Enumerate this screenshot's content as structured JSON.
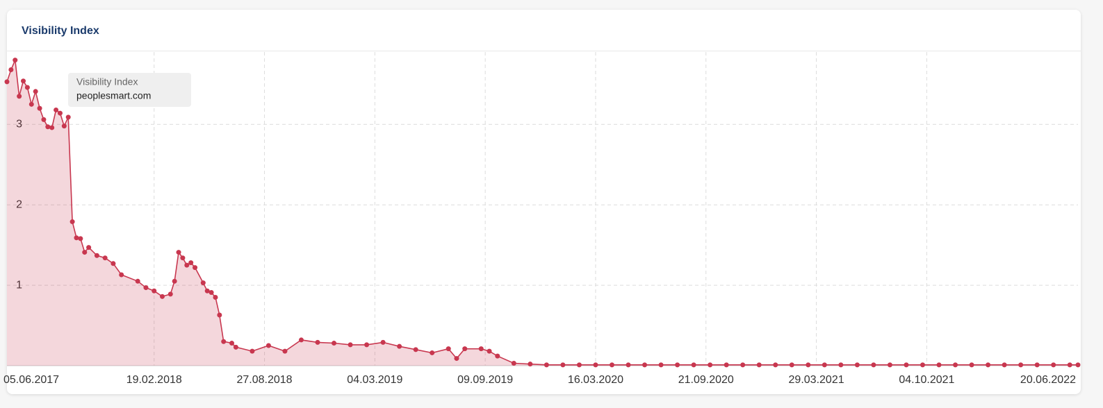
{
  "chart_data": {
    "type": "area",
    "title": "Visibility Index",
    "legend_title": "Visibility Index",
    "grid": true,
    "ylim": [
      0,
      3.9
    ],
    "yticks": [
      1,
      2,
      3
    ],
    "xlim": [
      "12.06.2017",
      "20.06.2022"
    ],
    "xticks": [
      "05.06.2017",
      "19.02.2018",
      "27.08.2018",
      "04.03.2019",
      "09.09.2019",
      "16.03.2020",
      "21.09.2020",
      "29.03.2021",
      "04.10.2021",
      "20.06.2022"
    ],
    "x": [
      "12.06.2017",
      "19.06.2017",
      "26.06.2017",
      "03.07.2017",
      "10.07.2017",
      "17.07.2017",
      "24.07.2017",
      "31.07.2017",
      "07.08.2017",
      "14.08.2017",
      "21.08.2017",
      "28.08.2017",
      "04.09.2017",
      "11.09.2017",
      "18.09.2017",
      "25.09.2017",
      "02.10.2017",
      "09.10.2017",
      "16.10.2017",
      "23.10.2017",
      "30.10.2017",
      "13.11.2017",
      "27.11.2017",
      "11.12.2017",
      "25.12.2017",
      "22.01.2018",
      "05.02.2018",
      "19.02.2018",
      "05.03.2018",
      "19.03.2018",
      "26.03.2018",
      "02.04.2018",
      "09.04.2018",
      "16.04.2018",
      "23.04.2018",
      "30.04.2018",
      "14.05.2018",
      "21.05.2018",
      "28.05.2018",
      "04.06.2018",
      "11.06.2018",
      "18.06.2018",
      "02.07.2018",
      "09.07.2018",
      "06.08.2018",
      "03.09.2018",
      "01.10.2018",
      "29.10.2018",
      "26.11.2018",
      "24.12.2018",
      "21.01.2019",
      "18.02.2019",
      "18.03.2019",
      "15.04.2019",
      "13.05.2019",
      "10.06.2019",
      "08.07.2019",
      "22.07.2019",
      "05.08.2019",
      "02.09.2019",
      "16.09.2019",
      "30.09.2019",
      "28.10.2019",
      "25.11.2019",
      "23.12.2019",
      "20.01.2020",
      "17.02.2020",
      "16.03.2020",
      "13.04.2020",
      "11.05.2020",
      "08.06.2020",
      "06.07.2020",
      "03.08.2020",
      "31.08.2020",
      "28.09.2020",
      "26.10.2020",
      "23.11.2020",
      "21.12.2020",
      "18.01.2021",
      "15.02.2021",
      "15.03.2021",
      "12.04.2021",
      "10.05.2021",
      "07.06.2021",
      "05.07.2021",
      "02.08.2021",
      "30.08.2021",
      "27.09.2021",
      "25.10.2021",
      "22.11.2021",
      "20.12.2021",
      "17.01.2022",
      "14.02.2022",
      "14.03.2022",
      "11.04.2022",
      "09.05.2022",
      "06.06.2022",
      "20.06.2022"
    ],
    "series": [
      {
        "name": "peoplesmart.com",
        "color": "#c8374f",
        "values": [
          3.53,
          3.68,
          3.8,
          3.35,
          3.54,
          3.46,
          3.25,
          3.41,
          3.2,
          3.06,
          2.97,
          2.96,
          3.18,
          3.14,
          2.98,
          3.09,
          1.79,
          1.59,
          1.58,
          1.41,
          1.47,
          1.37,
          1.34,
          1.27,
          1.13,
          1.05,
          0.97,
          0.93,
          0.86,
          0.89,
          1.05,
          1.41,
          1.34,
          1.25,
          1.28,
          1.22,
          1.03,
          0.93,
          0.91,
          0.85,
          0.63,
          0.3,
          0.28,
          0.23,
          0.18,
          0.25,
          0.18,
          0.32,
          0.29,
          0.28,
          0.26,
          0.26,
          0.29,
          0.24,
          0.2,
          0.16,
          0.21,
          0.09,
          0.21,
          0.21,
          0.18,
          0.12,
          0.03,
          0.02,
          0.01,
          0.01,
          0.01,
          0.01,
          0.01,
          0.01,
          0.01,
          0.01,
          0.01,
          0.01,
          0.01,
          0.01,
          0.01,
          0.01,
          0.01,
          0.01,
          0.01,
          0.01,
          0.01,
          0.01,
          0.01,
          0.01,
          0.01,
          0.01,
          0.01,
          0.01,
          0.01,
          0.01,
          0.01,
          0.01,
          0.01,
          0.01,
          0.01,
          0.01
        ]
      }
    ]
  }
}
